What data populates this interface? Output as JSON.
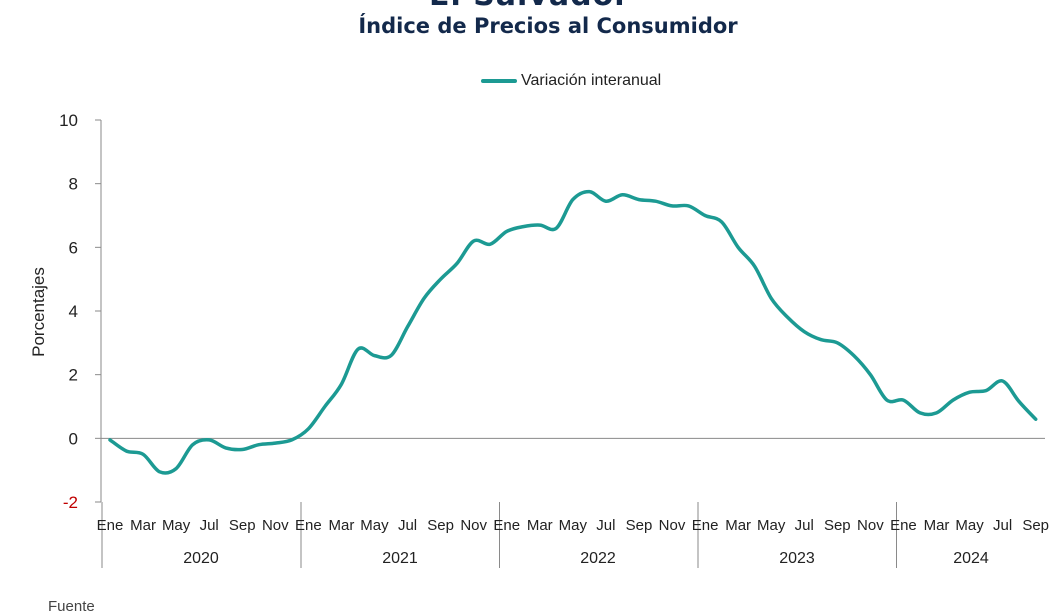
{
  "header": {
    "top_title": "El Salvador",
    "title": "Índice de Precios al Consumidor",
    "source_label": "Fuente"
  },
  "legend": {
    "series_label": "Variación interanual",
    "color": "#1c9a93"
  },
  "chart_data": {
    "type": "line",
    "title": "Índice de Precios al Consumidor",
    "ylabel": "Porcentajes",
    "xlabel": "",
    "ylim": [
      -2,
      10
    ],
    "yticks": [
      -2,
      0,
      2,
      4,
      6,
      8,
      10
    ],
    "zero_line": true,
    "legend_position": "top-center",
    "month_labels": [
      "Ene",
      "Mar",
      "May",
      "Jul",
      "Sep",
      "Nov"
    ],
    "years": [
      "2020",
      "2021",
      "2022",
      "2023",
      "2024"
    ],
    "last_year_month_labels": [
      "Ene",
      "Mar",
      "May",
      "Jul",
      "Sep"
    ],
    "series": [
      {
        "name": "Variación interanual",
        "color": "#1c9a93",
        "x": [
          "2020-01",
          "2020-02",
          "2020-03",
          "2020-04",
          "2020-05",
          "2020-06",
          "2020-07",
          "2020-08",
          "2020-09",
          "2020-10",
          "2020-11",
          "2020-12",
          "2021-01",
          "2021-02",
          "2021-03",
          "2021-04",
          "2021-05",
          "2021-06",
          "2021-07",
          "2021-08",
          "2021-09",
          "2021-10",
          "2021-11",
          "2021-12",
          "2022-01",
          "2022-02",
          "2022-03",
          "2022-04",
          "2022-05",
          "2022-06",
          "2022-07",
          "2022-08",
          "2022-09",
          "2022-10",
          "2022-11",
          "2022-12",
          "2023-01",
          "2023-02",
          "2023-03",
          "2023-04",
          "2023-05",
          "2023-06",
          "2023-07",
          "2023-08",
          "2023-09",
          "2023-10",
          "2023-11",
          "2023-12",
          "2024-01",
          "2024-02",
          "2024-03",
          "2024-04",
          "2024-05",
          "2024-06",
          "2024-07",
          "2024-08",
          "2024-09"
        ],
        "values": [
          -0.05,
          -0.4,
          -0.5,
          -1.05,
          -0.95,
          -0.2,
          -0.05,
          -0.3,
          -0.35,
          -0.2,
          -0.15,
          -0.05,
          0.3,
          1.0,
          1.7,
          2.8,
          2.6,
          2.6,
          3.5,
          4.4,
          5.0,
          5.5,
          6.2,
          6.1,
          6.5,
          6.65,
          6.7,
          6.6,
          7.5,
          7.75,
          7.45,
          7.65,
          7.5,
          7.45,
          7.3,
          7.3,
          7.0,
          6.8,
          6.0,
          5.4,
          4.4,
          3.8,
          3.35,
          3.1,
          3.0,
          2.6,
          2.0,
          1.2,
          1.2,
          0.8,
          0.8,
          1.2,
          1.45,
          1.5,
          1.8,
          1.15,
          0.6
        ]
      }
    ]
  }
}
